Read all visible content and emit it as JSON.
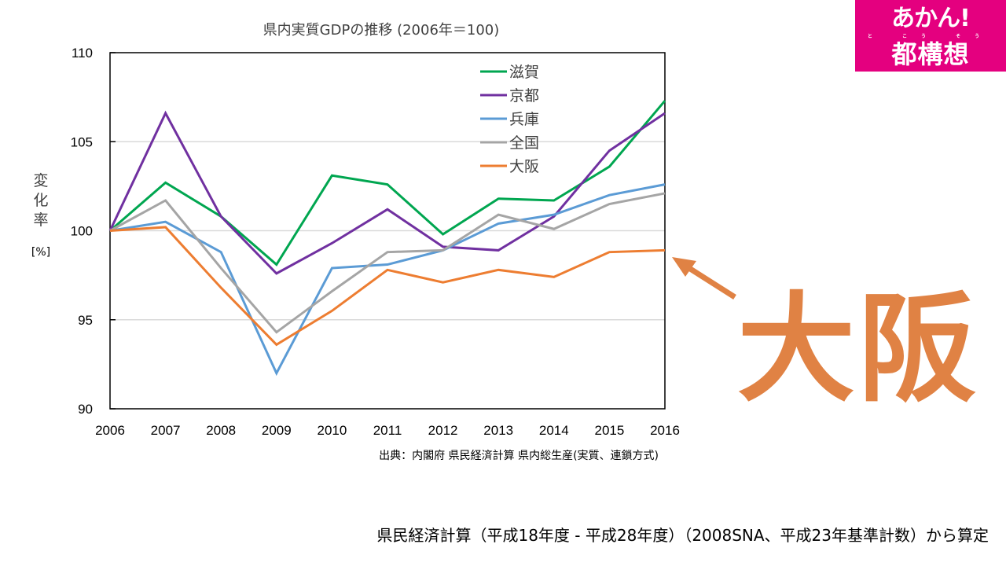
{
  "chart_data": {
    "type": "line",
    "title": "県内実質GDPの推移 (2006年＝100)",
    "xlabel": "",
    "ylabel": "変化率",
    "ylabel_unit": "[%]",
    "x": [
      "2006",
      "2007",
      "2008",
      "2009",
      "2010",
      "2011",
      "2012",
      "2013",
      "2014",
      "2015",
      "2016"
    ],
    "ylim": [
      90,
      110
    ],
    "yticks": [
      "90",
      "95",
      "100",
      "105",
      "110"
    ],
    "grid": true,
    "legend_position": "top-center",
    "series": [
      {
        "name": "滋賀",
        "color": "#00a650",
        "values": [
          100,
          102.7,
          100.8,
          98.1,
          103.1,
          102.6,
          99.8,
          101.8,
          101.7,
          103.6,
          107.3
        ]
      },
      {
        "name": "京都",
        "color": "#7030a0",
        "values": [
          100,
          106.6,
          100.8,
          97.6,
          99.3,
          101.2,
          99.1,
          98.9,
          100.8,
          104.5,
          106.6
        ]
      },
      {
        "name": "兵庫",
        "color": "#5b9bd5",
        "values": [
          100,
          100.5,
          98.8,
          92.0,
          97.9,
          98.1,
          98.9,
          100.4,
          100.9,
          102.0,
          102.6
        ]
      },
      {
        "name": "全国",
        "color": "#a5a5a5",
        "values": [
          100,
          101.7,
          97.9,
          94.3,
          96.6,
          98.8,
          98.9,
          100.9,
          100.1,
          101.5,
          102.1
        ]
      },
      {
        "name": "大阪",
        "color": "#ed7d31",
        "values": [
          100,
          100.2,
          96.8,
          93.6,
          95.5,
          97.8,
          97.1,
          97.8,
          97.4,
          98.8,
          98.9
        ]
      }
    ],
    "source": "出典：内閣府 県民経済計算 県内総生産(実質、連鎖方式)"
  },
  "logo": {
    "line1": "あかん!",
    "ruby": "と こう そう",
    "line2": "都構想"
  },
  "annotation": {
    "label": "大阪",
    "color": "#e08244"
  },
  "footnote": "県民経済計算（平成18年度 - 平成28年度）（2008SNA、平成23年基準計数）から算定"
}
